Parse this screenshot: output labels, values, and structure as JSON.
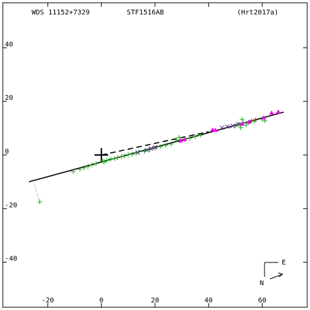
{
  "header": {
    "wds": "WDS 11152+7329",
    "name": "STF1516AB",
    "ref": "(Hrt2017a)"
  },
  "compass": {
    "north": "N",
    "east": "E"
  },
  "colors": {
    "green": "#22aa22",
    "magenta": "#ee00ee",
    "purple": "#7030a0",
    "dark_red": "#aa2233",
    "axis": "#000000"
  },
  "chart_data": {
    "type": "scatter",
    "title": "",
    "xlabel": "",
    "ylabel": "",
    "xlim": [
      -36.8,
      76.8
    ],
    "ylim": [
      -56.8,
      56.8
    ],
    "xticks": [
      -20,
      0,
      20,
      40,
      60
    ],
    "yticks": [
      -40,
      -20,
      0,
      20,
      40
    ],
    "grid": false,
    "primary": [
      0,
      0
    ],
    "orbit_line": {
      "from": [
        -27,
        -10
      ],
      "to": [
        68,
        16
      ]
    },
    "dashed_line": {
      "from": [
        0,
        0
      ],
      "to": [
        40,
        8.7
      ]
    },
    "series": [
      {
        "marker": "plus-green",
        "points": [
          [
            -23,
            -17.5
          ],
          [
            -10.5,
            -6.2
          ],
          [
            -8,
            -5.3
          ],
          [
            -6.5,
            -4.8
          ],
          [
            -5,
            -4.3
          ],
          [
            -3.5,
            -3.7
          ],
          [
            -2,
            -3.2
          ],
          [
            0.5,
            -2.3
          ],
          [
            1,
            -2.6
          ],
          [
            2,
            -2.0
          ],
          [
            3.5,
            -1.5
          ],
          [
            5,
            -1.3
          ],
          [
            6,
            -1.0
          ],
          [
            7.5,
            -0.6
          ],
          [
            8.5,
            -0.4
          ],
          [
            10,
            0.1
          ],
          [
            11.5,
            0.3
          ],
          [
            13,
            0.8
          ],
          [
            14,
            1.2
          ],
          [
            16,
            1.4
          ],
          [
            18,
            1.9
          ],
          [
            20,
            2.5
          ],
          [
            22,
            3.1
          ],
          [
            24,
            3.6
          ],
          [
            26,
            4.1
          ],
          [
            28,
            5.6
          ],
          [
            29,
            6.6
          ],
          [
            31,
            5.9
          ],
          [
            33,
            6.3
          ],
          [
            35,
            6.9
          ],
          [
            37,
            7.4
          ],
          [
            50,
            10.8
          ],
          [
            51,
            11.4
          ],
          [
            52,
            10.2
          ],
          [
            52.5,
            13.3
          ],
          [
            53,
            12.0
          ],
          [
            54,
            11.2
          ],
          [
            55,
            12.2
          ],
          [
            57,
            12.6
          ],
          [
            60,
            13.4
          ],
          [
            61,
            12.8
          ]
        ]
      },
      {
        "marker": "triangle-magenta",
        "points": [
          [
            29.5,
            5.3
          ],
          [
            31,
            5.8
          ],
          [
            41.5,
            9.4
          ],
          [
            42.5,
            9.3
          ],
          [
            52.5,
            11.6
          ],
          [
            55,
            12.3
          ],
          [
            60.5,
            13.9
          ],
          [
            63.5,
            15.7
          ],
          [
            66,
            16.1
          ]
        ]
      },
      {
        "marker": "x-purple",
        "points": [
          [
            13.5,
            0.9
          ],
          [
            17,
            1.8
          ],
          [
            18.5,
            2.4
          ],
          [
            20,
            2.9
          ],
          [
            45,
            10.2
          ],
          [
            47,
            10.6
          ],
          [
            49,
            10.9
          ],
          [
            51,
            11.5
          ]
        ]
      },
      {
        "marker": "plus-darkred",
        "points": [
          [
            56,
            12.8
          ],
          [
            57.5,
            13.1
          ]
        ]
      }
    ]
  }
}
